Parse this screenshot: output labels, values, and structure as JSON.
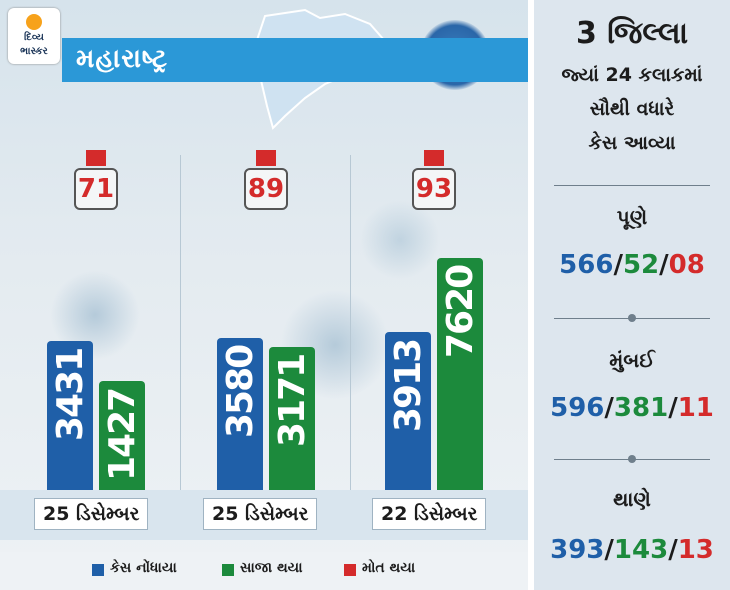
{
  "brand": {
    "logo_line1": "દિવ્ય",
    "logo_line2": "ભાસ્કર"
  },
  "header": {
    "state": "મહારાષ્ટ્ર"
  },
  "colors": {
    "cases": "#1f5fa8",
    "recovered": "#1c8a3c",
    "deaths": "#d42b2b",
    "banner": "#2b98d7"
  },
  "chart_data": {
    "type": "bar",
    "categories": [
      "25 ડિસેમ્બર",
      "25 ડિસેમ્બર",
      "22 ડિસેમ્બર"
    ],
    "series": [
      {
        "name": "કેસ નોંધાયા",
        "values": [
          3431,
          3580,
          3913
        ]
      },
      {
        "name": "સાજા થયા",
        "values": [
          1427,
          3171,
          7620
        ]
      },
      {
        "name": "મોત થયા",
        "values": [
          71,
          89,
          93
        ]
      }
    ],
    "legend": "bottom",
    "grid": false
  },
  "legend": {
    "cases": "કેસ નોંધાયા",
    "recovered": "સાજા થયા",
    "deaths": "મોત થયા"
  },
  "sidebar": {
    "title_line1": "3 જિલ્લા",
    "title_line2": "જ્યાં 24 કલાકમાં",
    "title_line3": "સૌથી વધારે",
    "title_line4": "કેસ આવ્યા",
    "districts": [
      {
        "name": "પૂણે",
        "cases": "566",
        "recovered": "52",
        "deaths": "08"
      },
      {
        "name": "મુંબઈ",
        "cases": "596",
        "recovered": "381",
        "deaths": "11"
      },
      {
        "name": "થાણે",
        "cases": "393",
        "recovered": "143",
        "deaths": "13"
      }
    ]
  }
}
